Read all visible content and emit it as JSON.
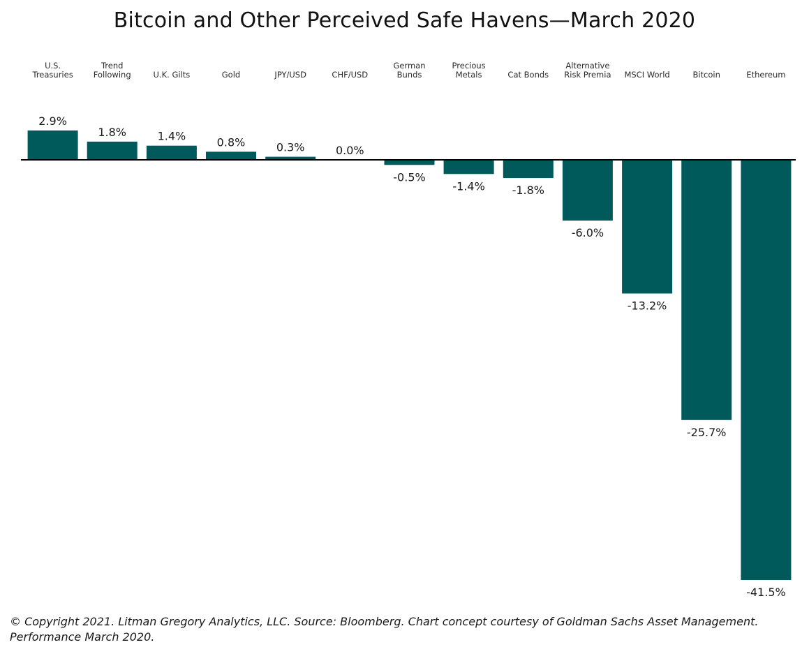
{
  "chart_data": {
    "type": "bar",
    "title": "Bitcoin and Other Perceived Safe Havens—March 2020",
    "categories": [
      "U.S. Treasuries",
      "Trend Following",
      "U.K. Gilts",
      "Gold",
      "JPY/USD",
      "CHF/USD",
      "German Bunds",
      "Precious Metals",
      "Cat Bonds",
      "Alternative Risk Premia",
      "MSCI World",
      "Bitcoin",
      "Ethereum"
    ],
    "category_lines": [
      [
        "U.S.",
        "Treasuries"
      ],
      [
        "Trend",
        "Following"
      ],
      [
        "U.K. Gilts"
      ],
      [
        "Gold"
      ],
      [
        "JPY/USD"
      ],
      [
        "CHF/USD"
      ],
      [
        "German",
        "Bunds"
      ],
      [
        "Precious",
        "Metals"
      ],
      [
        "Cat Bonds"
      ],
      [
        "Alternative",
        "Risk Premia"
      ],
      [
        "MSCI World"
      ],
      [
        "Bitcoin"
      ],
      [
        "Ethereum"
      ]
    ],
    "values": [
      2.9,
      1.8,
      1.4,
      0.8,
      0.3,
      0.0,
      -0.5,
      -1.4,
      -1.8,
      -6.0,
      -13.2,
      -25.7,
      -41.5
    ],
    "value_labels": [
      "2.9%",
      "1.8%",
      "1.4%",
      "0.8%",
      "0.3%",
      "0.0%",
      "-0.5%",
      "-1.4%",
      "-1.8%",
      "-6.0%",
      "-13.2%",
      "-25.7%",
      "-41.5%"
    ],
    "ylim": [
      -41.5,
      2.9
    ],
    "grid": false,
    "bar_color": "#005a5b",
    "baseline_color": "#000000",
    "category_label_position": "top"
  },
  "footnote": "© Copyright 2021. Litman Gregory Analytics, LLC. Source: Bloomberg. Chart concept courtesy of Goldman Sachs Asset Management. Performance March 2020."
}
